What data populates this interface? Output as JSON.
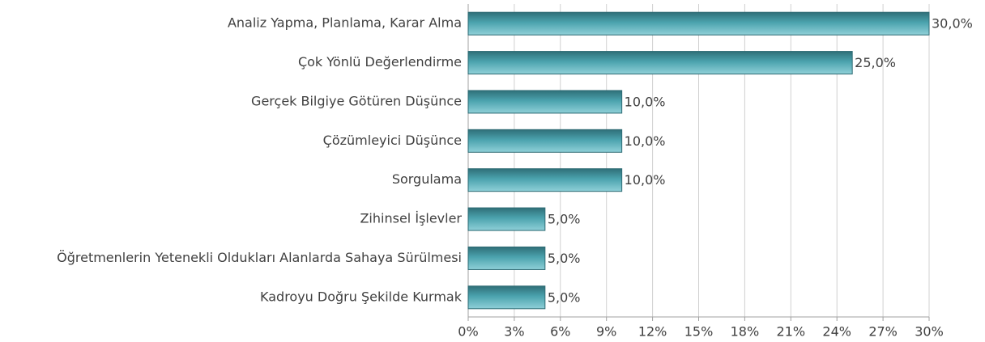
{
  "chart_data": {
    "type": "bar",
    "categories": [
      "Analiz Yapma, Planlama, Karar Alma",
      "Çok Yönlü Değerlendirme",
      "Gerçek Bilgiye Götüren Düşünce",
      "Çözümleyici Düşünce",
      "Sorgulama",
      "Zihinsel İşlevler",
      "Öğretmenlerin Yetenekli Oldukları Alanlarda Sahaya Sürülmesi",
      "Kadroyu Doğru Şekilde Kurmak"
    ],
    "values": [
      30,
      25,
      10,
      10,
      10,
      5,
      5,
      5
    ],
    "value_labels": [
      "30,0%",
      "25,0%",
      "10,0%",
      "10,0%",
      "10,0%",
      "5,0%",
      "5,0%",
      "5,0%"
    ],
    "color": "#4ba3ae",
    "xlim": [
      0,
      30
    ],
    "xticks": [
      {
        "value": 0,
        "label": "0%"
      },
      {
        "value": 3,
        "label": "3%"
      },
      {
        "value": 6,
        "label": "6%"
      },
      {
        "value": 9,
        "label": "9%"
      },
      {
        "value": 12,
        "label": "12%"
      },
      {
        "value": 15,
        "label": "15%"
      },
      {
        "value": 18,
        "label": "18%"
      },
      {
        "value": 21,
        "label": "21%"
      },
      {
        "value": 24,
        "label": "24%"
      },
      {
        "value": 27,
        "label": "27%"
      },
      {
        "value": 30,
        "label": "30%"
      }
    ],
    "grid": true
  }
}
